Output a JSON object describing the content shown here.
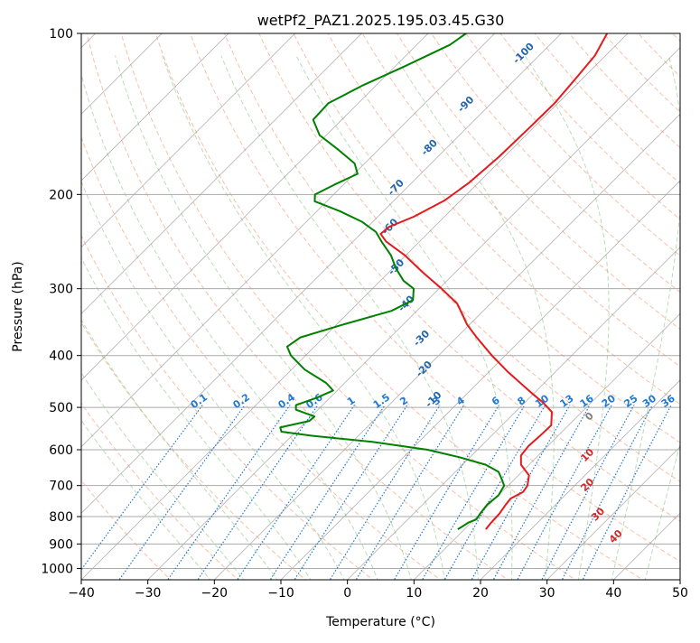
{
  "chart_data": {
    "type": "line",
    "title": "wetPf2_PAZ1.2025.195.03.45.G30",
    "xlabel": "Temperature (°C)",
    "ylabel": "Pressure (hPa)",
    "xlim": [
      -40,
      50
    ],
    "ylim": [
      1050,
      100
    ],
    "yscale": "log",
    "skew": "skew-T log-p diagram",
    "grid": true,
    "x_ticks": [
      -40,
      -30,
      -20,
      -10,
      0,
      10,
      20,
      30,
      40,
      50
    ],
    "y_ticks": [
      100,
      200,
      300,
      400,
      500,
      600,
      700,
      800,
      900,
      1000
    ],
    "series": [
      {
        "key": "temperature",
        "color": "#e41a1c",
        "points": [
          {
            "p": 845,
            "t": 13.2
          },
          {
            "p": 820,
            "t": 13.0
          },
          {
            "p": 790,
            "t": 12.9
          },
          {
            "p": 760,
            "t": 12.5
          },
          {
            "p": 740,
            "t": 12.3
          },
          {
            "p": 720,
            "t": 13.2
          },
          {
            "p": 700,
            "t": 12.9
          },
          {
            "p": 670,
            "t": 11.6
          },
          {
            "p": 640,
            "t": 8.8
          },
          {
            "p": 615,
            "t": 7.4
          },
          {
            "p": 590,
            "t": 7.1
          },
          {
            "p": 565,
            "t": 7.3
          },
          {
            "p": 540,
            "t": 7.4
          },
          {
            "p": 510,
            "t": 5.5
          },
          {
            "p": 490,
            "t": 2.8
          },
          {
            "p": 470,
            "t": -0.4
          },
          {
            "p": 430,
            "t": -7.0
          },
          {
            "p": 400,
            "t": -12.0
          },
          {
            "p": 370,
            "t": -17.0
          },
          {
            "p": 350,
            "t": -20.4
          },
          {
            "p": 320,
            "t": -25.0
          },
          {
            "p": 300,
            "t": -29.6
          },
          {
            "p": 280,
            "t": -34.8
          },
          {
            "p": 260,
            "t": -40.1
          },
          {
            "p": 245,
            "t": -45.0
          },
          {
            "p": 237,
            "t": -47.0
          },
          {
            "p": 230,
            "t": -46.8
          },
          {
            "p": 220,
            "t": -44.6
          },
          {
            "p": 205,
            "t": -42.4
          },
          {
            "p": 190,
            "t": -41.4
          },
          {
            "p": 170,
            "t": -40.8
          },
          {
            "p": 150,
            "t": -40.6
          },
          {
            "p": 135,
            "t": -40.5
          },
          {
            "p": 120,
            "t": -41.1
          },
          {
            "p": 110,
            "t": -41.6
          },
          {
            "p": 100,
            "t": -43.1
          }
        ]
      },
      {
        "key": "dewpoint",
        "color": "#008000",
        "points": [
          {
            "p": 845,
            "t": 9.0
          },
          {
            "p": 820,
            "t": 9.6
          },
          {
            "p": 810,
            "t": 10.3
          },
          {
            "p": 790,
            "t": 10.0
          },
          {
            "p": 760,
            "t": 9.7
          },
          {
            "p": 730,
            "t": 10.0
          },
          {
            "p": 700,
            "t": 9.4
          },
          {
            "p": 680,
            "t": 8.0
          },
          {
            "p": 660,
            "t": 6.5
          },
          {
            "p": 640,
            "t": 3.5
          },
          {
            "p": 620,
            "t": -1.5
          },
          {
            "p": 600,
            "t": -7.5
          },
          {
            "p": 580,
            "t": -17.0
          },
          {
            "p": 565,
            "t": -27.0
          },
          {
            "p": 555,
            "t": -32.2
          },
          {
            "p": 545,
            "t": -33.0
          },
          {
            "p": 530,
            "t": -29.6
          },
          {
            "p": 520,
            "t": -29.5
          },
          {
            "p": 505,
            "t": -33.3
          },
          {
            "p": 495,
            "t": -34.0
          },
          {
            "p": 480,
            "t": -32.0
          },
          {
            "p": 465,
            "t": -30.6
          },
          {
            "p": 450,
            "t": -32.8
          },
          {
            "p": 425,
            "t": -38.0
          },
          {
            "p": 400,
            "t": -42.2
          },
          {
            "p": 385,
            "t": -44.1
          },
          {
            "p": 370,
            "t": -43.5
          },
          {
            "p": 350,
            "t": -39.0
          },
          {
            "p": 330,
            "t": -33.8
          },
          {
            "p": 315,
            "t": -32.2
          },
          {
            "p": 300,
            "t": -33.8
          },
          {
            "p": 290,
            "t": -36.5
          },
          {
            "p": 275,
            "t": -39.5
          },
          {
            "p": 260,
            "t": -42.2
          },
          {
            "p": 245,
            "t": -45.7
          },
          {
            "p": 235,
            "t": -48.0
          },
          {
            "p": 225,
            "t": -51.6
          },
          {
            "p": 215,
            "t": -56.5
          },
          {
            "p": 206,
            "t": -61.8
          },
          {
            "p": 200,
            "t": -62.8
          },
          {
            "p": 192,
            "t": -61.4
          },
          {
            "p": 183,
            "t": -59.5
          },
          {
            "p": 175,
            "t": -61.5
          },
          {
            "p": 165,
            "t": -66.0
          },
          {
            "p": 155,
            "t": -71.0
          },
          {
            "p": 145,
            "t": -74.3
          },
          {
            "p": 135,
            "t": -74.5
          },
          {
            "p": 125,
            "t": -72.0
          },
          {
            "p": 115,
            "t": -68.5
          },
          {
            "p": 105,
            "t": -65.0
          },
          {
            "p": 100,
            "t": -64.3
          }
        ]
      }
    ],
    "dry_adiabat_labels": [
      "-100",
      "-90",
      "-80",
      "-70",
      "-60",
      "-50",
      "-40",
      "-30",
      "-20",
      "-10"
    ],
    "mixing_ratio_labels": [
      "0.1",
      "0.2",
      "0.4",
      "0.6",
      "1",
      "1.5",
      "2",
      "3",
      "4",
      "6",
      "8",
      "10",
      "13",
      "16",
      "20",
      "25",
      "30",
      "36"
    ],
    "moist_adiabat_labels": [
      "0",
      "10",
      "20",
      "30",
      "40"
    ],
    "colors": {
      "dry_adiabat": "#f4a582",
      "moist_adiabat": "#7fbf7b",
      "mixing_ratio": "#1f78d1",
      "isotherm": "#808080",
      "isobar": "#aaaaaa",
      "dry_label": "#2166ac",
      "moist_label": "#d62728"
    }
  }
}
